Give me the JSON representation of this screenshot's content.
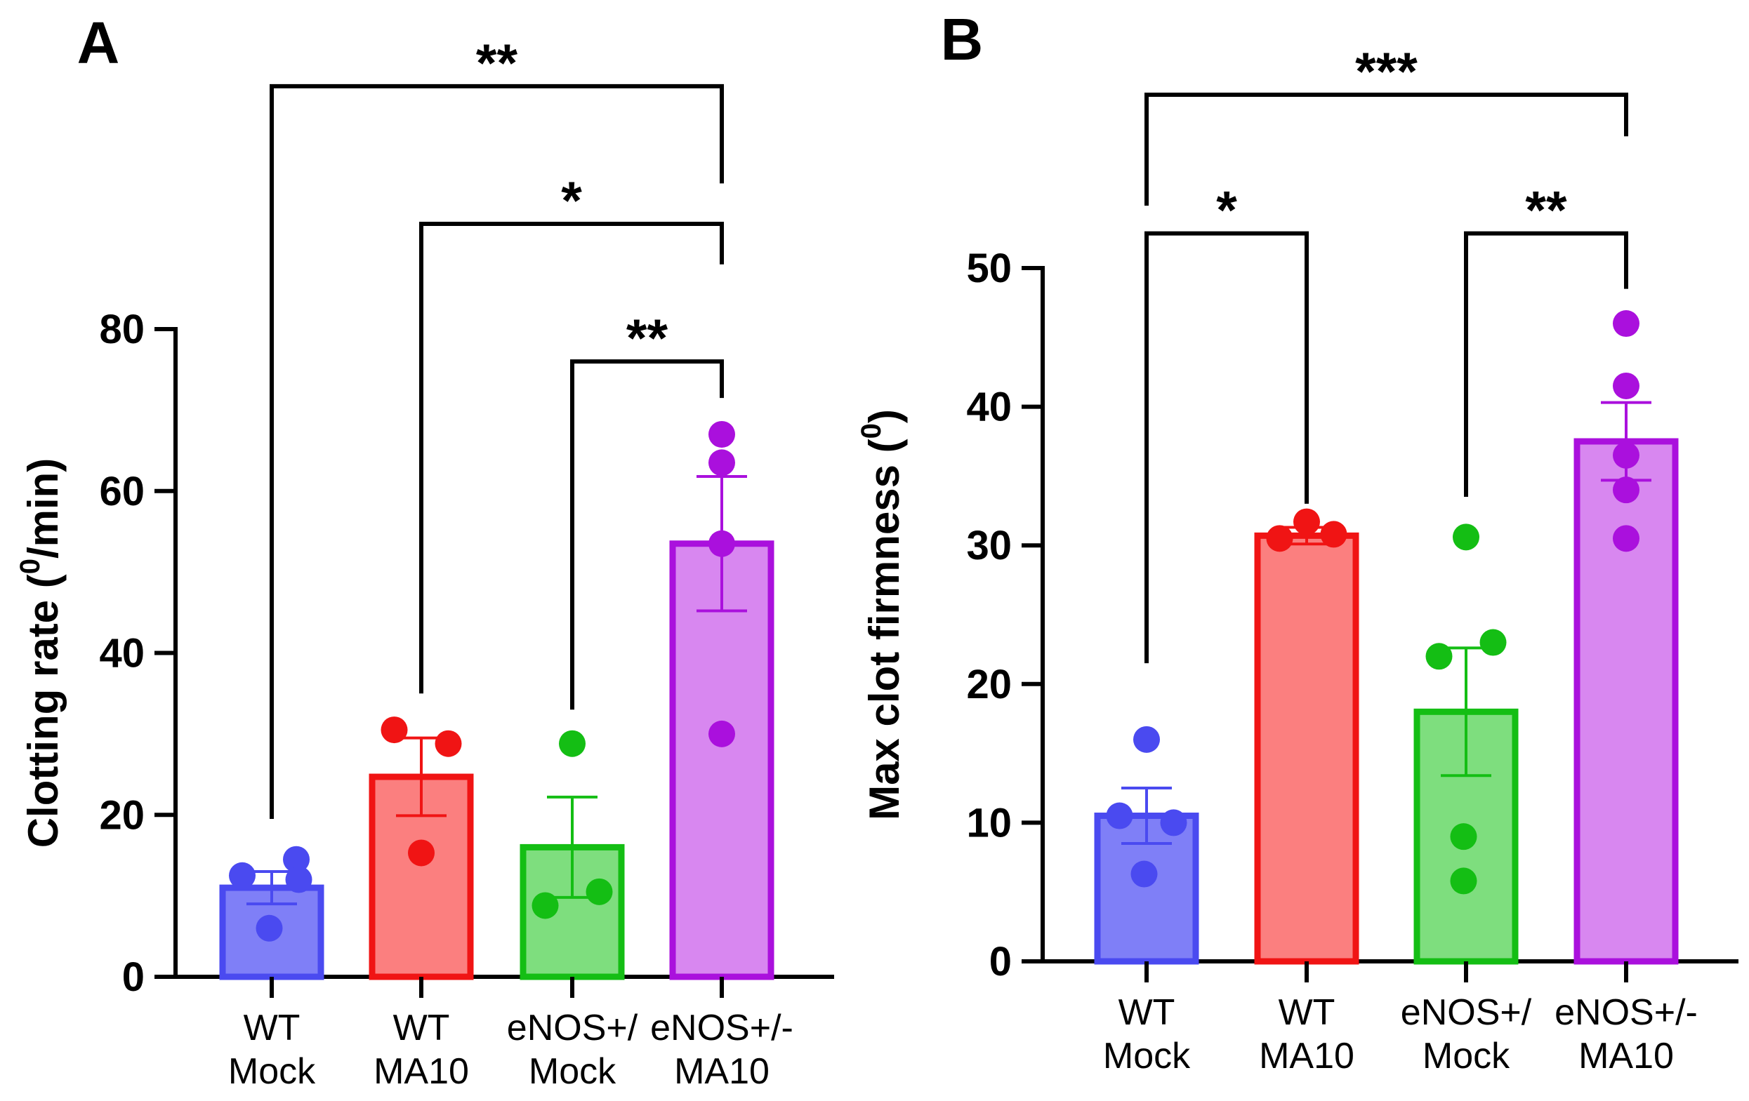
{
  "colors": {
    "blue": "#4a4af0",
    "blue_fill": "#7f7ff7",
    "red": "#f01414",
    "red_fill": "#fb7f7f",
    "green": "#14be14",
    "green_fill": "#7ede7e",
    "purple": "#aa10dd",
    "purple_fill": "#d887f0",
    "axis": "#000000"
  },
  "chart_data": [
    {
      "type": "bar",
      "panel": "A",
      "ylabel": "Clotting rate (",
      "ylabel_sup": "0",
      "ylabel_tail": "/min)",
      "ylim": [
        0,
        80
      ],
      "yticks": [
        0,
        20,
        40,
        60,
        80
      ],
      "ytick_labels": [
        "0",
        "20",
        "40",
        "60",
        "80"
      ],
      "categories": [
        {
          "line1": "WT",
          "line2": "Mock",
          "color": "blue",
          "mean": 11,
          "sem": 2,
          "points": [
            12.5,
            14.5,
            12,
            6
          ]
        },
        {
          "line1": "WT",
          "line2": "MA10",
          "color": "red",
          "mean": 24.7,
          "sem": 4.8,
          "points": [
            30.5,
            28.8,
            15.3
          ]
        },
        {
          "line1": "eNOS+/",
          "line2": "Mock",
          "color": "green",
          "mean": 16,
          "sem": 6.2,
          "points": [
            28.8,
            8.8,
            10.5
          ]
        },
        {
          "line1": "eNOS+/-",
          "line2": "MA10",
          "color": "purple",
          "mean": 53.5,
          "sem": 8.3,
          "points": [
            67,
            63.5,
            53.5,
            30
          ]
        }
      ],
      "comparisons": [
        {
          "from": 0,
          "to": 3,
          "y_level": 110,
          "left_end": 19.5,
          "right_end": 98,
          "label": "**"
        },
        {
          "from": 1,
          "to": 3,
          "y_level": 93,
          "left_end": 35,
          "right_end": 88,
          "label": "*"
        },
        {
          "from": 2,
          "to": 3,
          "y_level": 76,
          "left_end": 33,
          "right_end": 71.5,
          "label": "**"
        }
      ]
    },
    {
      "type": "bar",
      "panel": "B",
      "ylabel": "Max clot firmness (",
      "ylabel_sup": "0",
      "ylabel_tail": ")",
      "ylim": [
        0,
        50
      ],
      "yticks": [
        0,
        10,
        20,
        30,
        40,
        50
      ],
      "ytick_labels": [
        "0",
        "10",
        "20",
        "30",
        "40",
        "50"
      ],
      "categories": [
        {
          "line1": "WT",
          "line2": "Mock",
          "color": "blue",
          "mean": 10.5,
          "sem": 2,
          "points": [
            16,
            10.5,
            10,
            6.3
          ]
        },
        {
          "line1": "WT",
          "line2": "MA10",
          "color": "red",
          "mean": 30.7,
          "sem": 0.6,
          "points": [
            30.5,
            31.7,
            30.8
          ]
        },
        {
          "line1": "eNOS+/",
          "line2": "Mock",
          "color": "green",
          "mean": 18,
          "sem": 4.6,
          "points": [
            30.6,
            22,
            23,
            9,
            5.8
          ]
        },
        {
          "line1": "eNOS+/-",
          "line2": "MA10",
          "color": "purple",
          "mean": 37.5,
          "sem": 2.8,
          "points": [
            46,
            41.5,
            36.5,
            34,
            30.5
          ]
        }
      ],
      "comparisons": [
        {
          "from": 0,
          "to": 3,
          "y_level": 62.5,
          "left_end": 54.5,
          "right_end": 59.5,
          "label": "***"
        },
        {
          "from": 0,
          "to": 1,
          "y_level": 52.5,
          "left_end": 21.5,
          "right_end": 33,
          "label": "*"
        },
        {
          "from": 2,
          "to": 3,
          "y_level": 52.5,
          "left_end": 33.5,
          "right_end": 48.5,
          "label": "**"
        }
      ]
    }
  ]
}
